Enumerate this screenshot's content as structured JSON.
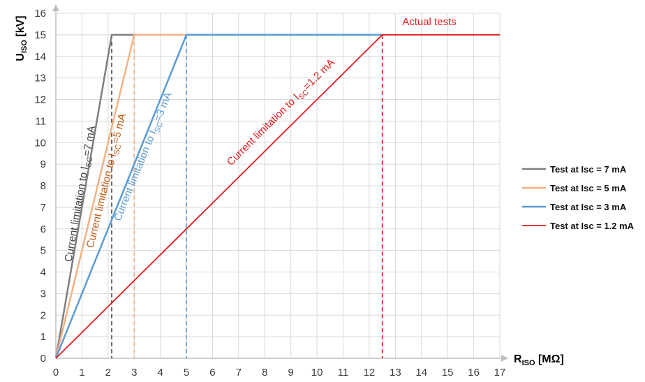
{
  "chart_data": {
    "type": "line",
    "xlabel": {
      "main": "R",
      "sub": "ISO",
      "unit": "[MΩ]"
    },
    "ylabel": {
      "main": "U",
      "sub": "ISO",
      "unit": "[kV]"
    },
    "xlim": [
      0,
      17
    ],
    "ylim": [
      0,
      16
    ],
    "x_ticks": [
      "0",
      "1",
      "2",
      "3",
      "4",
      "5",
      "6",
      "7",
      "8",
      "9",
      "10",
      "11",
      "12",
      "13",
      "14",
      "15",
      "16",
      "17"
    ],
    "y_ticks": [
      "0",
      "1",
      "2",
      "3",
      "4",
      "5",
      "6",
      "7",
      "8",
      "9",
      "10",
      "11",
      "12",
      "13",
      "14",
      "15",
      "16"
    ],
    "grid": true,
    "legend_position": "right",
    "series": [
      {
        "name": "Test at Isc = 7 mA",
        "color": "#7f7f7f",
        "points": [
          [
            0,
            0
          ],
          [
            2.14,
            15
          ],
          [
            3,
            15
          ]
        ]
      },
      {
        "name": "Test at Isc = 5 mA",
        "color": "#f4b183",
        "points": [
          [
            0,
            0
          ],
          [
            3,
            15
          ],
          [
            5,
            15
          ]
        ]
      },
      {
        "name": "Test at Isc = 3 mA",
        "color": "#5b9bd5",
        "points": [
          [
            0,
            0
          ],
          [
            5,
            15
          ],
          [
            12.5,
            15
          ]
        ]
      },
      {
        "name": "Test at Isc = 1.2 mA",
        "color": "#e31a1c",
        "points": [
          [
            0,
            0
          ],
          [
            12.5,
            15
          ],
          [
            17,
            15
          ]
        ]
      }
    ],
    "vertical_markers": [
      {
        "x": 2.14,
        "y": 15,
        "color": "#404040"
      },
      {
        "x": 3,
        "y": 15,
        "color": "#f4b183"
      },
      {
        "x": 5,
        "y": 15,
        "color": "#5b9bd5"
      },
      {
        "x": 12.5,
        "y": 15,
        "color": "#e31a1c"
      }
    ],
    "annotations": [
      {
        "prefix": "Current limitation to I",
        "sub": "SC",
        "suffix": "=7 mA",
        "color": "#404040",
        "x": 1.05,
        "y": 7.6,
        "slope": 7.0
      },
      {
        "prefix": "Current limitation to I",
        "sub": "SC",
        "suffix": "=5 mA",
        "color": "#c55a11",
        "x": 2.05,
        "y": 8.2,
        "slope": 5.0
      },
      {
        "prefix": "Current limitation to I",
        "sub": "SC",
        "suffix": "=3 mA",
        "color": "#5b9bd5",
        "x": 3.45,
        "y": 9.3,
        "slope": 3.0
      },
      {
        "prefix": "Current limitation to I",
        "sub": "SC",
        "suffix": "=1.2 mA",
        "color": "#e31a1c",
        "x": 8.7,
        "y": 11.3,
        "slope": 1.2
      },
      {
        "prefix": "Actual tests",
        "sub": "",
        "suffix": "",
        "color": "#e31a1c",
        "x": 14.3,
        "y": 15.45,
        "slope": 0
      }
    ]
  }
}
